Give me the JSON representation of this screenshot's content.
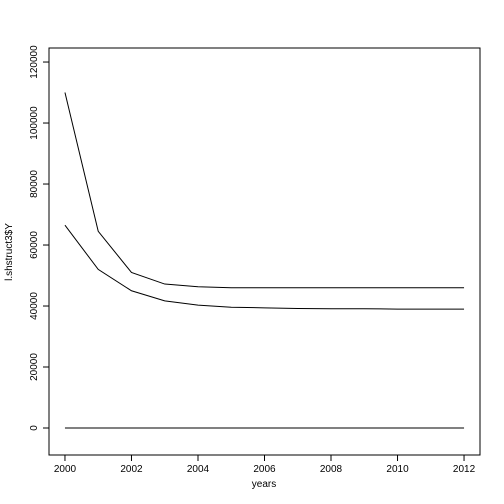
{
  "chart_data": {
    "type": "line",
    "x_label": "years",
    "y_label": "l.shstruct3$Y",
    "x": [
      2000,
      2001,
      2002,
      2003,
      2004,
      2005,
      2006,
      2007,
      2008,
      2009,
      2010,
      2011,
      2012
    ],
    "series": [
      {
        "color": "#000000",
        "values": [
          110000,
          64500,
          51000,
          47200,
          46300,
          46000,
          46000,
          46000,
          46000,
          46000,
          46000,
          46000,
          46000
        ]
      },
      {
        "color": "#000000",
        "values": [
          66500,
          52000,
          45000,
          41700,
          40300,
          39600,
          39400,
          39200,
          39100,
          39100,
          39000,
          39000,
          39000
        ]
      },
      {
        "color": "#000000",
        "values": [
          0,
          0,
          0,
          0,
          0,
          0,
          0,
          0,
          0,
          0,
          0,
          0,
          0
        ]
      }
    ],
    "xlim": [
      1999.52,
      2012.48
    ],
    "xticks": [
      2000,
      2002,
      2004,
      2006,
      2008,
      2010,
      2012
    ],
    "ylim": [
      -8850,
      124600
    ],
    "yticks": [
      0,
      20000,
      40000,
      60000,
      80000,
      100000,
      120000
    ]
  }
}
